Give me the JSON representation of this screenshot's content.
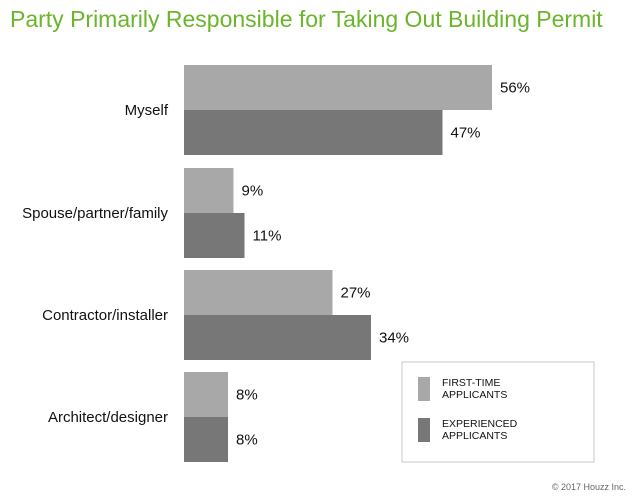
{
  "title": "Party Primarily Responsible for Taking Out Building Permit",
  "colors": {
    "title": "#6ab52a",
    "first_time": "#a8a8a8",
    "experienced": "#777777",
    "legend_border": "#c8c8c8"
  },
  "footer": "© 2017 Houzz Inc.",
  "chart_data": {
    "type": "bar",
    "orientation": "horizontal",
    "title": "Party Primarily Responsible for Taking Out Building Permit",
    "categories": [
      "Myself",
      "Spouse/partner/family",
      "Contractor/installer",
      "Architect/designer"
    ],
    "series": [
      {
        "name": "FIRST-TIME APPLICANTS",
        "values": [
          56,
          9,
          27,
          8
        ],
        "labels": [
          "56%",
          "9%",
          "27%",
          "8%"
        ]
      },
      {
        "name": "EXPERIENCED APPLICANTS",
        "values": [
          47,
          11,
          34,
          8
        ],
        "labels": [
          "47%",
          "11%",
          "34%",
          "8%"
        ]
      }
    ],
    "value_unit": "%",
    "xlim": [
      0,
      100
    ],
    "grid": false,
    "legend_position": "bottom-right",
    "legend": [
      {
        "lines": [
          "FIRST-TIME",
          "APPLICANTS"
        ]
      },
      {
        "lines": [
          "EXPERIENCED",
          "APPLICANTS"
        ]
      }
    ]
  }
}
